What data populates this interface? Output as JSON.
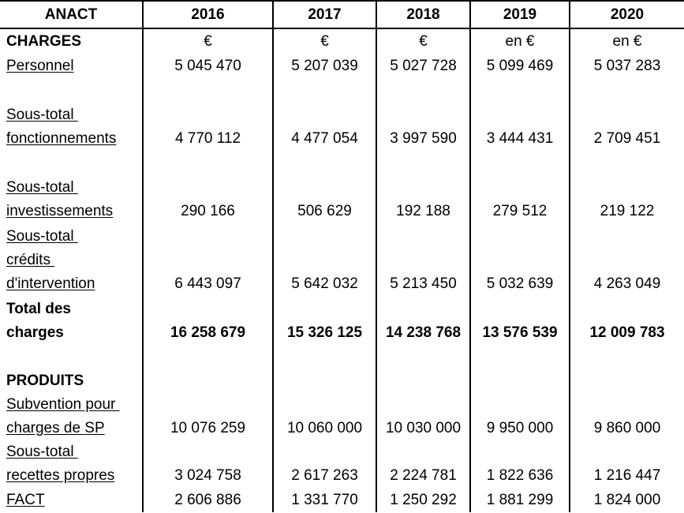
{
  "header": {
    "corner": "ANACT",
    "years": [
      "2016",
      "2017",
      "2018",
      "2019",
      "2020"
    ]
  },
  "rows": [
    {
      "label_lines": [
        "CHARGES"
      ],
      "values": [
        "€",
        "€",
        "€",
        "en €",
        "en €"
      ]
    },
    {
      "label_lines": [
        "Personnel"
      ],
      "values": [
        "5 045 470",
        "5 207 039",
        "5 027 728",
        "5 099 469",
        "5 037 283"
      ]
    },
    {
      "label_lines": [
        "Sous-total ",
        "fonctionnements"
      ],
      "values": [
        "4 770 112",
        "4 477 054",
        "3 997 590",
        "3 444 431",
        "2 709 451"
      ]
    },
    {
      "label_lines": [
        "Sous-total ",
        "investissements"
      ],
      "values": [
        "290 166",
        "506 629",
        "192 188",
        "279 512",
        "219 122"
      ]
    },
    {
      "label_lines": [
        "Sous-total ",
        "crédits ",
        "d'intervention"
      ],
      "values": [
        "6 443 097",
        "5 642 032",
        "5 213 450",
        "5 032 639",
        "4 263 049"
      ]
    },
    {
      "label_lines": [
        "Total des",
        "charges"
      ],
      "values": [
        "16 258 679",
        "15 326 125",
        "14 238 768",
        "13 576 539",
        "12 009 783"
      ]
    },
    {
      "label_lines": [
        "PRODUITS"
      ],
      "values": [
        "",
        "",
        "",
        "",
        ""
      ]
    },
    {
      "label_lines": [
        "Subvention pour ",
        "charges de SP"
      ],
      "values": [
        "10 076 259",
        "10 060 000",
        "10 030 000",
        "9 950 000",
        "9 860 000"
      ]
    },
    {
      "label_lines": [
        "Sous-total ",
        "recettes propres"
      ],
      "values": [
        "3 024 758",
        "2 617 263",
        "2 224 781",
        "1 822 636",
        "1 216 447"
      ]
    },
    {
      "label_lines": [
        "FACT"
      ],
      "values": [
        "2 606 886",
        "1 331 770",
        "1 250 292",
        "1 881 299",
        "1 824 000"
      ]
    }
  ]
}
